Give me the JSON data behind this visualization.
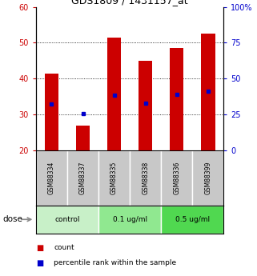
{
  "title": "GDS1809 / 1431157_at",
  "samples": [
    "GSM88334",
    "GSM88337",
    "GSM88335",
    "GSM88338",
    "GSM88336",
    "GSM88399"
  ],
  "count_values": [
    41.5,
    27.0,
    51.5,
    45.0,
    48.5,
    52.5
  ],
  "percentile_values": [
    32.5,
    25.5,
    38.5,
    33.0,
    39.0,
    41.0
  ],
  "bar_bottom": 20,
  "ylim": [
    20,
    60
  ],
  "right_ylim": [
    0,
    100
  ],
  "right_yticks": [
    0,
    25,
    50,
    75,
    100
  ],
  "right_yticklabels": [
    "0",
    "25",
    "50",
    "75",
    "100%"
  ],
  "left_yticks": [
    20,
    30,
    40,
    50,
    60
  ],
  "left_yticklabels": [
    "20",
    "30",
    "40",
    "50",
    "60"
  ],
  "groups": [
    {
      "label": "control",
      "start": 0,
      "end": 2,
      "color": "#c8f0c8"
    },
    {
      "label": "0.1 ug/ml",
      "start": 2,
      "end": 4,
      "color": "#90e890"
    },
    {
      "label": "0.5 ug/ml",
      "start": 4,
      "end": 6,
      "color": "#50d850"
    }
  ],
  "dose_label": "dose",
  "bar_color": "#cc0000",
  "percentile_color": "#0000cc",
  "bar_width": 0.45,
  "sample_box_color": "#c8c8c8",
  "sample_label_color": "#000000",
  "left_tick_color": "#cc0000",
  "right_tick_color": "#0000cc",
  "legend_count_color": "#cc0000",
  "legend_pct_color": "#0000cc",
  "fig_width": 3.21,
  "fig_height": 3.45,
  "dpi": 100
}
